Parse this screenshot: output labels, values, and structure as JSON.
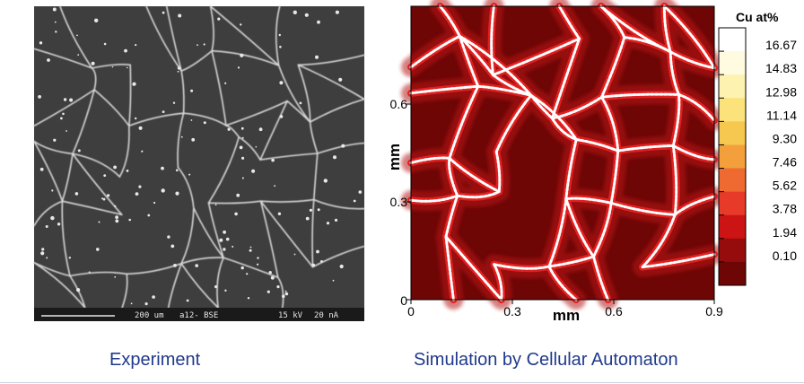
{
  "experiment": {
    "caption": "Experiment",
    "micrograph_annotation": {
      "scale": "200 um",
      "sample": "a12- BSE",
      "voltage": "15 kV",
      "current": "20 nA"
    }
  },
  "simulation": {
    "caption": "Simulation by Cellular Automaton",
    "x_axis": {
      "label": "mm",
      "ticks": [
        "0",
        "0.3",
        "0.6",
        "0.9"
      ],
      "range": [
        0,
        0.9
      ]
    },
    "y_axis": {
      "label": "mm",
      "ticks": [
        "0",
        "0.3",
        "0.6"
      ],
      "range": [
        0,
        0.9
      ]
    },
    "colorbar": {
      "title": "Cu at%",
      "levels": [
        "16.67",
        "14.83",
        "12.98",
        "11.14",
        "9.30",
        "7.46",
        "5.62",
        "3.78",
        "1.94",
        "0.10"
      ],
      "colors": [
        "#ffffff",
        "#fffbe0",
        "#fdf2b0",
        "#fbe27a",
        "#f7c850",
        "#f3a03c",
        "#ee6a30",
        "#e83a28",
        "#cc1414",
        "#960c0c",
        "#6e0606"
      ]
    }
  },
  "colors": {
    "caption_text": "#1f3a8c",
    "matrix": "#6e0606",
    "micrograph_bg": "#3e3e3e"
  }
}
